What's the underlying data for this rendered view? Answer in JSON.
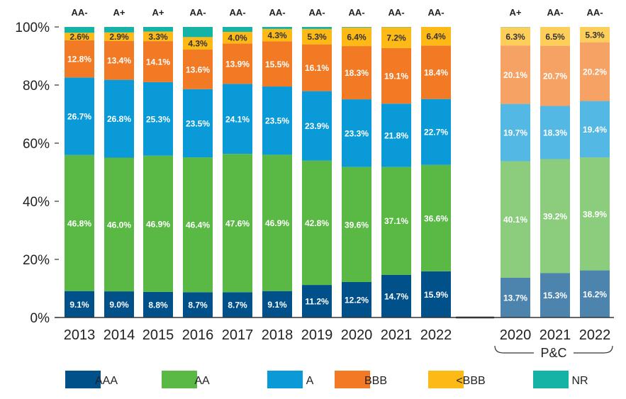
{
  "chart_data": {
    "type": "bar",
    "stacked": true,
    "percent_stacked": true,
    "categories": [
      "2013",
      "2014",
      "2015",
      "2016",
      "2017",
      "2018",
      "2019",
      "2020",
      "2021",
      "2022",
      "2020",
      "2021",
      "2022"
    ],
    "group_label": "P&C",
    "group_members": [
      "2020",
      "2021",
      "2022"
    ],
    "top_labels": [
      "AA-",
      "A+",
      "A+",
      "AA-",
      "AA-",
      "AA-",
      "AA-",
      "AA-",
      "AA-",
      "AA-",
      "A+",
      "AA-",
      "AA-"
    ],
    "series": [
      {
        "name": "AAA",
        "color": "#00508a",
        "values": [
          9.1,
          9.0,
          8.8,
          8.7,
          8.7,
          9.1,
          11.2,
          12.2,
          14.7,
          15.9,
          13.7,
          15.3,
          16.2
        ],
        "labels": [
          "9.1%",
          "9.0%",
          "8.8%",
          "8.7%",
          "8.7%",
          "9.1%",
          "11.2%",
          "12.2%",
          "14.7%",
          "15.9%",
          "13.7%",
          "15.3%",
          "16.2%"
        ]
      },
      {
        "name": "AA",
        "color": "#5ab845",
        "values": [
          46.8,
          46.0,
          46.9,
          46.4,
          47.6,
          46.9,
          42.8,
          39.6,
          37.1,
          36.6,
          40.1,
          39.2,
          38.9
        ],
        "labels": [
          "46.8%",
          "46.0%",
          "46.9%",
          "46.4%",
          "47.6%",
          "46.9%",
          "42.8%",
          "39.6%",
          "37.1%",
          "36.6%",
          "40.1%",
          "39.2%",
          "38.9%"
        ]
      },
      {
        "name": "A",
        "color": "#0b9ad8",
        "values": [
          26.7,
          26.8,
          25.3,
          23.5,
          24.1,
          23.5,
          23.9,
          23.3,
          21.8,
          22.7,
          19.7,
          18.3,
          19.4
        ],
        "labels": [
          "26.7%",
          "26.8%",
          "25.3%",
          "23.5%",
          "24.1%",
          "23.5%",
          "23.9%",
          "23.3%",
          "21.8%",
          "22.7%",
          "19.7%",
          "18.3%",
          "19.4%"
        ]
      },
      {
        "name": "BBB",
        "color": "#f27a24",
        "values": [
          12.8,
          13.4,
          14.1,
          13.6,
          13.9,
          15.5,
          16.1,
          18.3,
          19.1,
          18.4,
          20.1,
          20.7,
          20.2
        ],
        "labels": [
          "12.8%",
          "13.4%",
          "14.1%",
          "13.6%",
          "13.9%",
          "15.5%",
          "16.1%",
          "18.3%",
          "19.1%",
          "18.4%",
          "20.1%",
          "20.7%",
          "20.2%"
        ]
      },
      {
        "name": "<BBB",
        "color": "#fdb916",
        "values": [
          2.6,
          2.9,
          3.3,
          4.3,
          4.0,
          4.3,
          5.3,
          6.4,
          7.2,
          6.4,
          6.3,
          6.5,
          5.3
        ],
        "labels": [
          "2.6%",
          "2.9%",
          "3.3%",
          "4.3%",
          "4.0%",
          "4.3%",
          "5.3%",
          "6.4%",
          "7.2%",
          "6.4%",
          "6.3%",
          "6.5%",
          "5.3%"
        ]
      },
      {
        "name": "NR",
        "color": "#14b3a6",
        "values": [
          2.0,
          1.9,
          1.6,
          3.5,
          1.7,
          0.7,
          0.7,
          0.2,
          0.1,
          0.0,
          0.1,
          0.0,
          0.0
        ],
        "labels": []
      }
    ],
    "ylim": [
      0,
      100
    ],
    "yticks": [
      "0%",
      "20%",
      "40%",
      "60%",
      "80%",
      "100%"
    ],
    "xlabel": "",
    "ylabel": "",
    "title": "",
    "legend_position": "bottom",
    "grid": false
  }
}
